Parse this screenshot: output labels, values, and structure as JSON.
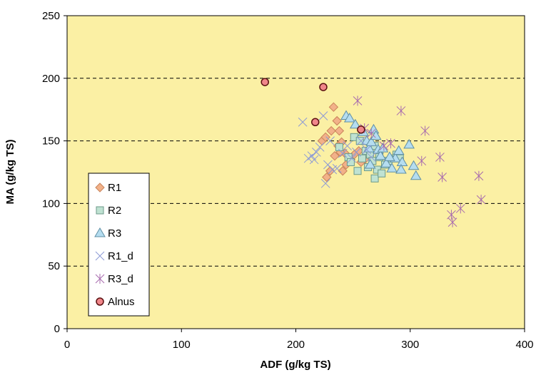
{
  "chart_data": {
    "type": "scatter",
    "xlabel": "ADF (g/kg TS)",
    "ylabel": "MA (g/kg TS)",
    "xlim": [
      0,
      400
    ],
    "ylim": [
      0,
      250
    ],
    "x_ticks": [
      0,
      100,
      200,
      300,
      400
    ],
    "y_ticks": [
      0,
      50,
      100,
      150,
      200,
      250
    ],
    "grid": "horizontal dashed",
    "plot_background": "#FBF0A4",
    "legend_position": "left",
    "series": [
      {
        "name": "R1",
        "marker": "diamond",
        "color": "#F2B189",
        "stroke": "#C8835A",
        "points": [
          [
            223,
            150
          ],
          [
            226,
            153
          ],
          [
            231,
            158
          ],
          [
            233,
            177
          ],
          [
            236,
            166
          ],
          [
            238,
            158
          ],
          [
            240,
            149
          ],
          [
            243,
            140
          ],
          [
            230,
            126
          ],
          [
            227,
            121
          ],
          [
            241,
            126
          ],
          [
            234,
            138
          ],
          [
            239,
            141
          ],
          [
            248,
            135
          ],
          [
            244,
            131
          ],
          [
            237,
            146
          ],
          [
            255,
            142
          ],
          [
            260,
            135
          ],
          [
            251,
            139
          ],
          [
            257,
            133
          ]
        ]
      },
      {
        "name": "R2",
        "marker": "square",
        "color": "#BFE2D2",
        "stroke": "#6C9A8A",
        "points": [
          [
            238,
            145
          ],
          [
            246,
            137
          ],
          [
            248,
            133
          ],
          [
            251,
            153
          ],
          [
            254,
            126
          ],
          [
            256,
            150
          ],
          [
            258,
            136
          ],
          [
            261,
            142
          ],
          [
            263,
            129
          ],
          [
            265,
            139
          ],
          [
            267,
            134
          ],
          [
            269,
            120
          ],
          [
            271,
            127
          ],
          [
            273,
            137
          ],
          [
            275,
            124
          ],
          [
            278,
            131
          ],
          [
            281,
            134
          ],
          [
            284,
            136
          ],
          [
            288,
            139
          ],
          [
            291,
            136
          ],
          [
            269,
            146
          ]
        ]
      },
      {
        "name": "R3",
        "marker": "triangle",
        "color": "#B5DDF0",
        "stroke": "#5F8FA5",
        "points": [
          [
            244,
            170
          ],
          [
            247,
            168
          ],
          [
            252,
            163
          ],
          [
            259,
            157
          ],
          [
            262,
            150
          ],
          [
            264,
            144
          ],
          [
            266,
            149
          ],
          [
            268,
            159
          ],
          [
            270,
            154
          ],
          [
            272,
            143
          ],
          [
            274,
            138
          ],
          [
            279,
            132
          ],
          [
            284,
            128
          ],
          [
            287,
            136
          ],
          [
            290,
            142
          ],
          [
            293,
            133
          ],
          [
            299,
            147
          ],
          [
            303,
            130
          ],
          [
            305,
            122
          ],
          [
            292,
            127
          ],
          [
            265,
            131
          ],
          [
            276,
            144
          ],
          [
            282,
            137
          ]
        ]
      },
      {
        "name": "R1_d",
        "marker": "x",
        "color": "#8C9AD6",
        "stroke": "#8C9AD6",
        "points": [
          [
            206,
            165
          ],
          [
            211,
            136
          ],
          [
            214,
            138
          ],
          [
            218,
            141
          ],
          [
            221,
            145
          ],
          [
            224,
            170
          ],
          [
            226,
            116
          ],
          [
            228,
            131
          ],
          [
            232,
            127
          ],
          [
            236,
            128
          ],
          [
            241,
            140
          ],
          [
            245,
            146
          ],
          [
            249,
            136
          ],
          [
            253,
            141
          ],
          [
            257,
            150
          ],
          [
            262,
            143
          ],
          [
            266,
            137
          ],
          [
            216,
            135
          ],
          [
            230,
            150
          ]
        ]
      },
      {
        "name": "R3_d",
        "marker": "star",
        "color": "#A86BAE",
        "stroke": "#A86BAE",
        "points": [
          [
            254,
            182
          ],
          [
            260,
            160
          ],
          [
            266,
            156
          ],
          [
            277,
            146
          ],
          [
            283,
            148
          ],
          [
            292,
            174
          ],
          [
            310,
            134
          ],
          [
            313,
            158
          ],
          [
            326,
            137
          ],
          [
            328,
            121
          ],
          [
            336,
            91
          ],
          [
            337,
            85
          ],
          [
            344,
            96
          ],
          [
            360,
            122
          ],
          [
            362,
            103
          ]
        ]
      },
      {
        "name": "Alnus",
        "marker": "circle",
        "color": "#F0868A",
        "stroke": "#5A1010",
        "points": [
          [
            173,
            197
          ],
          [
            224,
            193
          ],
          [
            217,
            165
          ],
          [
            257,
            159
          ]
        ]
      }
    ]
  }
}
